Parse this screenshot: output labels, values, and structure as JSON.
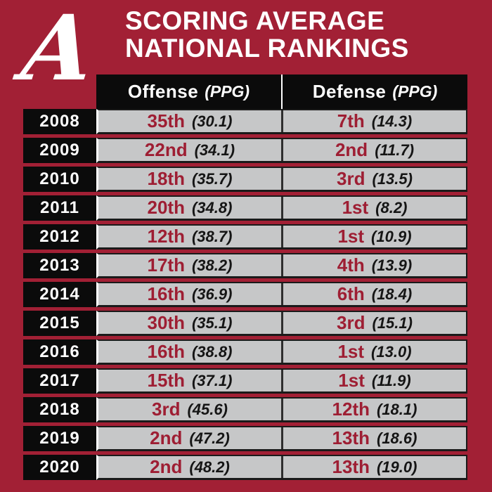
{
  "colors": {
    "crimson": "#A22035",
    "crimson-text": "#9E1E33",
    "black": "#0B0B0B",
    "gray": "#C6C7C8",
    "border-dark": "#1A1A1A",
    "white": "#FFFFFF"
  },
  "logo": {
    "name": "alabama-script-a",
    "letter": "A"
  },
  "title": {
    "line1": "SCORING AVERAGE",
    "line2": "NATIONAL RANKINGS"
  },
  "table": {
    "columns": [
      {
        "label": "Offense",
        "unit": "(PPG)"
      },
      {
        "label": "Defense",
        "unit": "(PPG)"
      }
    ],
    "rows": [
      {
        "year": "2008",
        "offense_rank": "35th",
        "offense_ppg": "(30.1)",
        "defense_rank": "7th",
        "defense_ppg": "(14.3)"
      },
      {
        "year": "2009",
        "offense_rank": "22nd",
        "offense_ppg": "(34.1)",
        "defense_rank": "2nd",
        "defense_ppg": "(11.7)"
      },
      {
        "year": "2010",
        "offense_rank": "18th",
        "offense_ppg": "(35.7)",
        "defense_rank": "3rd",
        "defense_ppg": "(13.5)"
      },
      {
        "year": "2011",
        "offense_rank": "20th",
        "offense_ppg": "(34.8)",
        "defense_rank": "1st",
        "defense_ppg": "(8.2)"
      },
      {
        "year": "2012",
        "offense_rank": "12th",
        "offense_ppg": "(38.7)",
        "defense_rank": "1st",
        "defense_ppg": "(10.9)"
      },
      {
        "year": "2013",
        "offense_rank": "17th",
        "offense_ppg": "(38.2)",
        "defense_rank": "4th",
        "defense_ppg": "(13.9)"
      },
      {
        "year": "2014",
        "offense_rank": "16th",
        "offense_ppg": "(36.9)",
        "defense_rank": "6th",
        "defense_ppg": "(18.4)"
      },
      {
        "year": "2015",
        "offense_rank": "30th",
        "offense_ppg": "(35.1)",
        "defense_rank": "3rd",
        "defense_ppg": "(15.1)"
      },
      {
        "year": "2016",
        "offense_rank": "16th",
        "offense_ppg": "(38.8)",
        "defense_rank": "1st",
        "defense_ppg": "(13.0)"
      },
      {
        "year": "2017",
        "offense_rank": "15th",
        "offense_ppg": "(37.1)",
        "defense_rank": "1st",
        "defense_ppg": "(11.9)"
      },
      {
        "year": "2018",
        "offense_rank": "3rd",
        "offense_ppg": "(45.6)",
        "defense_rank": "12th",
        "defense_ppg": "(18.1)"
      },
      {
        "year": "2019",
        "offense_rank": "2nd",
        "offense_ppg": "(47.2)",
        "defense_rank": "13th",
        "defense_ppg": "(18.6)"
      },
      {
        "year": "2020",
        "offense_rank": "2nd",
        "offense_ppg": "(48.2)",
        "defense_rank": "13th",
        "defense_ppg": "(19.0)"
      }
    ]
  },
  "chart_data": {
    "type": "table",
    "title": "Scoring Average National Rankings",
    "categories": [
      2008,
      2009,
      2010,
      2011,
      2012,
      2013,
      2014,
      2015,
      2016,
      2017,
      2018,
      2019,
      2020
    ],
    "series": [
      {
        "name": "Offense national rank",
        "values": [
          35,
          22,
          18,
          20,
          12,
          17,
          16,
          30,
          16,
          15,
          3,
          2,
          2
        ]
      },
      {
        "name": "Offense PPG",
        "values": [
          30.1,
          34.1,
          35.7,
          34.8,
          38.7,
          38.2,
          36.9,
          35.1,
          38.8,
          37.1,
          45.6,
          47.2,
          48.2
        ]
      },
      {
        "name": "Defense national rank",
        "values": [
          7,
          2,
          3,
          1,
          1,
          4,
          6,
          3,
          1,
          1,
          12,
          13,
          13
        ]
      },
      {
        "name": "Defense PPG (allowed)",
        "values": [
          14.3,
          11.7,
          13.5,
          8.2,
          10.9,
          13.9,
          18.4,
          15.1,
          13.0,
          11.9,
          18.1,
          18.6,
          19.0
        ]
      }
    ]
  }
}
